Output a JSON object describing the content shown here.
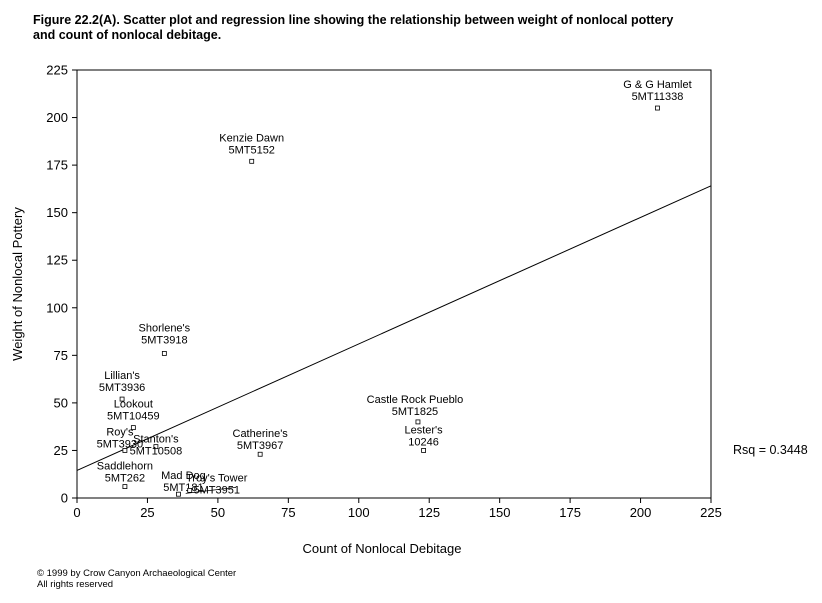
{
  "title_line1": "Figure 22.2(A).  Scatter plot and regression line showing the relationship between weight of nonlocal pottery",
  "title_line2": "and count of nonlocal debitage.",
  "rsq_label": "Rsq = 0.3448",
  "copyright_line1": "© 1999 by Crow Canyon Archaeological Center",
  "copyright_line2": "All rights reserved",
  "chart_data": {
    "type": "scatter",
    "xlabel": "Count of Nonlocal Debitage",
    "ylabel": "Weight of Nonlocal Pottery",
    "xlim": [
      0,
      225
    ],
    "ylim": [
      0,
      225
    ],
    "xticks": [
      0,
      25,
      50,
      75,
      100,
      125,
      150,
      175,
      200,
      225
    ],
    "yticks": [
      0,
      25,
      50,
      75,
      100,
      125,
      150,
      175,
      200,
      225
    ],
    "grid": false,
    "regression": {
      "intercept": 14.5,
      "slope": 0.665,
      "x_range": [
        0,
        225
      ]
    },
    "points": [
      {
        "x": 206,
        "y": 205,
        "label": [
          "G & G Hamlet",
          "5MT11338"
        ]
      },
      {
        "x": 62,
        "y": 177,
        "label": [
          "Kenzie Dawn",
          "5MT5152"
        ]
      },
      {
        "x": 31,
        "y": 76,
        "label": [
          "Shorlene's",
          "5MT3918"
        ]
      },
      {
        "x": 16,
        "y": 52,
        "label": [
          "Lillian's",
          "5MT3936"
        ]
      },
      {
        "x": 20,
        "y": 37,
        "label": [
          "Lookout",
          "5MT10459"
        ]
      },
      {
        "x": 17,
        "y": 25,
        "label": [
          "Roy's",
          "5MT3930"
        ]
      },
      {
        "x": 28,
        "y": 27,
        "label": [
          "Stanton's",
          "5MT10508"
        ]
      },
      {
        "x": 17,
        "y": 6,
        "label": [
          "Saddlehorn",
          "5MT262"
        ]
      },
      {
        "x": 36,
        "y": 2,
        "label": [
          "Mad Dog",
          "5MT181"
        ]
      },
      {
        "x": 40,
        "y": 4,
        "label": [
          "Troy's Tower",
          "5MT3951"
        ]
      },
      {
        "x": 65,
        "y": 23,
        "label": [
          "Catherine's",
          "5MT3967"
        ]
      },
      {
        "x": 121,
        "y": 40,
        "label": [
          "Castle Rock Pueblo",
          "5MT1825"
        ]
      },
      {
        "x": 123,
        "y": 25,
        "label": [
          "Lester's",
          "10246"
        ]
      }
    ]
  }
}
